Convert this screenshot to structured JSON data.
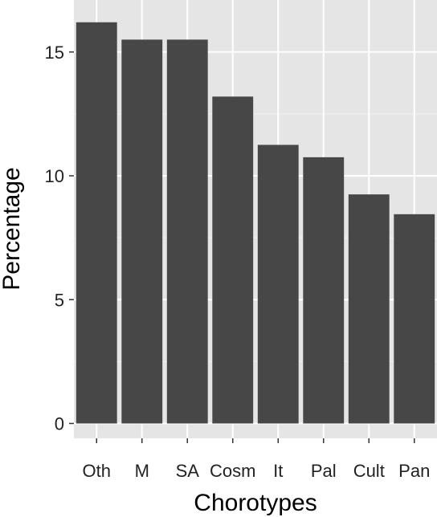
{
  "chart_data": {
    "type": "bar",
    "title": "",
    "xlabel": "Chorotypes",
    "ylabel": "Percentage",
    "categories": [
      "Oth",
      "M",
      "SA",
      "Cosm",
      "It",
      "Pal",
      "Cult",
      "Pan"
    ],
    "values": [
      16.2,
      15.5,
      15.5,
      13.2,
      11.25,
      10.75,
      9.25,
      8.45
    ],
    "ylim": [
      -0.6,
      17.1
    ],
    "yticks": [
      0,
      5,
      10,
      15
    ],
    "ytick_labels": [
      "0",
      "5",
      "10",
      "15"
    ],
    "grid": true,
    "legend": "none",
    "colors": {
      "panel_background": "#e5e5e5",
      "grid_major": "#ffffff",
      "grid_minor": "#f2f2f2",
      "bar_fill": "#474747",
      "tick": "#333333"
    }
  }
}
